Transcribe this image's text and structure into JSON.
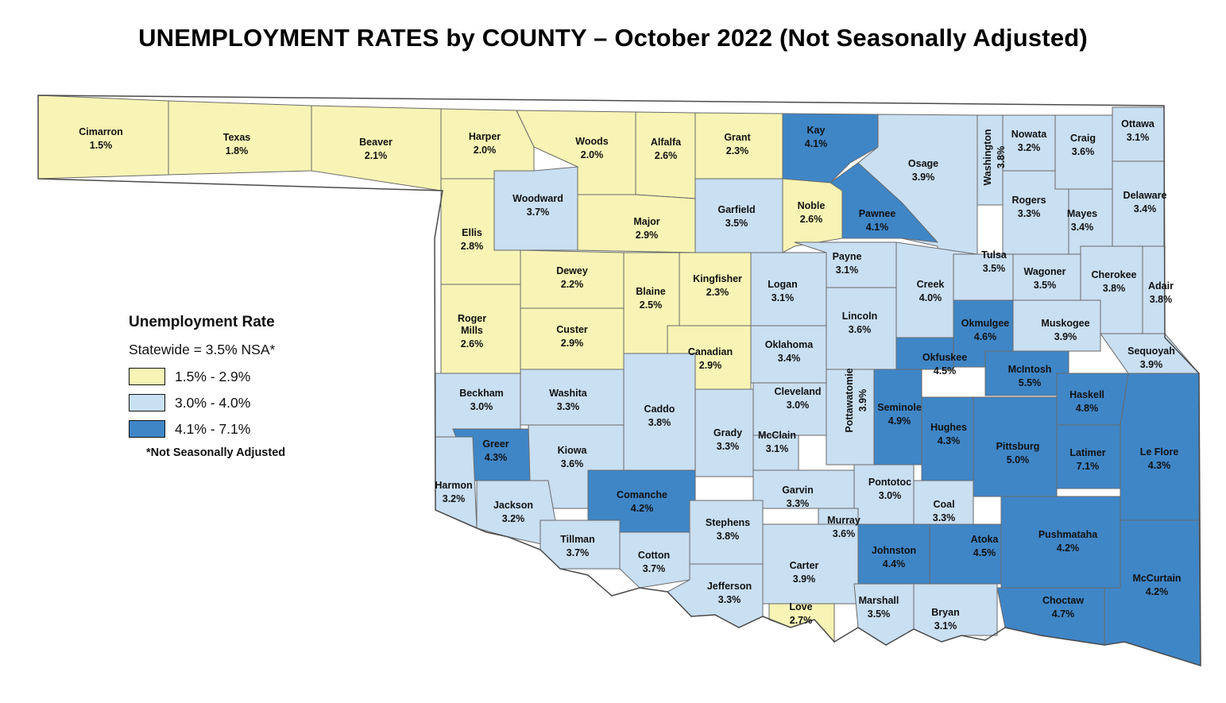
{
  "title": "UNEMPLOYMENT RATES by COUNTY – October 2022 (Not Seasonally Adjusted)",
  "legend": {
    "title": "Unemployment Rate",
    "statewide": "Statewide = 3.5% NSA*",
    "footnote": "*Not Seasonally Adjusted",
    "classes": [
      {
        "label": "1.5% - 2.9%",
        "color": "#f7f4b5"
      },
      {
        "label": "3.0% - 4.0%",
        "color": "#c9dff2"
      },
      {
        "label": "4.1% - 7.1%",
        "color": "#3f86c7"
      }
    ]
  },
  "counties": [
    {
      "name": "Cimarron",
      "rate": "1.5%",
      "class": 0
    },
    {
      "name": "Texas",
      "rate": "1.8%",
      "class": 0
    },
    {
      "name": "Beaver",
      "rate": "2.1%",
      "class": 0
    },
    {
      "name": "Harper",
      "rate": "2.0%",
      "class": 0
    },
    {
      "name": "Woods",
      "rate": "2.0%",
      "class": 0
    },
    {
      "name": "Alfalfa",
      "rate": "2.6%",
      "class": 0
    },
    {
      "name": "Grant",
      "rate": "2.3%",
      "class": 0
    },
    {
      "name": "Kay",
      "rate": "4.1%",
      "class": 2
    },
    {
      "name": "Osage",
      "rate": "3.9%",
      "class": 1
    },
    {
      "name": "Washington",
      "rate": "3.8%",
      "class": 1
    },
    {
      "name": "Nowata",
      "rate": "3.2%",
      "class": 1
    },
    {
      "name": "Craig",
      "rate": "3.6%",
      "class": 1
    },
    {
      "name": "Ottawa",
      "rate": "3.1%",
      "class": 1
    },
    {
      "name": "Woodward",
      "rate": "3.7%",
      "class": 1
    },
    {
      "name": "Major",
      "rate": "2.9%",
      "class": 0
    },
    {
      "name": "Garfield",
      "rate": "3.5%",
      "class": 1
    },
    {
      "name": "Noble",
      "rate": "2.6%",
      "class": 0
    },
    {
      "name": "Pawnee",
      "rate": "4.1%",
      "class": 2
    },
    {
      "name": "Rogers",
      "rate": "3.3%",
      "class": 1
    },
    {
      "name": "Mayes",
      "rate": "3.4%",
      "class": 1
    },
    {
      "name": "Delaware",
      "rate": "3.4%",
      "class": 1
    },
    {
      "name": "Ellis",
      "rate": "2.8%",
      "class": 0
    },
    {
      "name": "Dewey",
      "rate": "2.2%",
      "class": 0
    },
    {
      "name": "Blaine",
      "rate": "2.5%",
      "class": 0
    },
    {
      "name": "Kingfisher",
      "rate": "2.3%",
      "class": 0
    },
    {
      "name": "Logan",
      "rate": "3.1%",
      "class": 1
    },
    {
      "name": "Payne",
      "rate": "3.1%",
      "class": 1
    },
    {
      "name": "Creek",
      "rate": "4.0%",
      "class": 1
    },
    {
      "name": "Tulsa",
      "rate": "3.5%",
      "class": 1
    },
    {
      "name": "Wagoner",
      "rate": "3.5%",
      "class": 1
    },
    {
      "name": "Cherokee",
      "rate": "3.8%",
      "class": 1
    },
    {
      "name": "Adair",
      "rate": "3.8%",
      "class": 1
    },
    {
      "name": "Roger Mills",
      "rate": "2.6%",
      "class": 0
    },
    {
      "name": "Custer",
      "rate": "2.9%",
      "class": 0
    },
    {
      "name": "Canadian",
      "rate": "2.9%",
      "class": 0
    },
    {
      "name": "Oklahoma",
      "rate": "3.4%",
      "class": 1
    },
    {
      "name": "Lincoln",
      "rate": "3.6%",
      "class": 1
    },
    {
      "name": "Okmulgee",
      "rate": "4.6%",
      "class": 2
    },
    {
      "name": "Muskogee",
      "rate": "3.9%",
      "class": 1
    },
    {
      "name": "Sequoyah",
      "rate": "3.9%",
      "class": 1
    },
    {
      "name": "Okfuskee",
      "rate": "4.5%",
      "class": 2
    },
    {
      "name": "McIntosh",
      "rate": "5.5%",
      "class": 2
    },
    {
      "name": "Beckham",
      "rate": "3.0%",
      "class": 1
    },
    {
      "name": "Washita",
      "rate": "3.3%",
      "class": 1
    },
    {
      "name": "Caddo",
      "rate": "3.8%",
      "class": 1
    },
    {
      "name": "Grady",
      "rate": "3.3%",
      "class": 1
    },
    {
      "name": "Cleveland",
      "rate": "3.0%",
      "class": 1
    },
    {
      "name": "McClain",
      "rate": "3.1%",
      "class": 1
    },
    {
      "name": "Pottawatomie",
      "rate": "3.9%",
      "class": 1
    },
    {
      "name": "Seminole",
      "rate": "4.9%",
      "class": 2
    },
    {
      "name": "Hughes",
      "rate": "4.3%",
      "class": 2
    },
    {
      "name": "Pittsburg",
      "rate": "5.0%",
      "class": 2
    },
    {
      "name": "Haskell",
      "rate": "4.8%",
      "class": 2
    },
    {
      "name": "Latimer",
      "rate": "7.1%",
      "class": 2
    },
    {
      "name": "Le Flore",
      "rate": "4.3%",
      "class": 2
    },
    {
      "name": "Greer",
      "rate": "4.3%",
      "class": 2
    },
    {
      "name": "Kiowa",
      "rate": "3.6%",
      "class": 1
    },
    {
      "name": "Harmon",
      "rate": "3.2%",
      "class": 1
    },
    {
      "name": "Jackson",
      "rate": "3.2%",
      "class": 1
    },
    {
      "name": "Comanche",
      "rate": "4.2%",
      "class": 2
    },
    {
      "name": "Garvin",
      "rate": "3.3%",
      "class": 1
    },
    {
      "name": "Pontotoc",
      "rate": "3.0%",
      "class": 1
    },
    {
      "name": "Coal",
      "rate": "3.3%",
      "class": 1
    },
    {
      "name": "Stephens",
      "rate": "3.8%",
      "class": 1
    },
    {
      "name": "Murray",
      "rate": "3.6%",
      "class": 1
    },
    {
      "name": "Tillman",
      "rate": "3.7%",
      "class": 1
    },
    {
      "name": "Cotton",
      "rate": "3.7%",
      "class": 1
    },
    {
      "name": "Carter",
      "rate": "3.9%",
      "class": 1
    },
    {
      "name": "Johnston",
      "rate": "4.4%",
      "class": 2
    },
    {
      "name": "Atoka",
      "rate": "4.5%",
      "class": 2
    },
    {
      "name": "Pushmataha",
      "rate": "4.2%",
      "class": 2
    },
    {
      "name": "McCurtain",
      "rate": "4.2%",
      "class": 2
    },
    {
      "name": "Jefferson",
      "rate": "3.3%",
      "class": 1
    },
    {
      "name": "Love",
      "rate": "2.7%",
      "class": 0
    },
    {
      "name": "Marshall",
      "rate": "3.5%",
      "class": 1
    },
    {
      "name": "Bryan",
      "rate": "3.1%",
      "class": 1
    },
    {
      "name": "Choctaw",
      "rate": "4.7%",
      "class": 2
    }
  ]
}
